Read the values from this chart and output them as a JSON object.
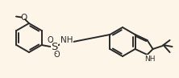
{
  "background_color": "#fdf6e8",
  "bond_color": "#2a2a2a",
  "text_color": "#2a2a2a",
  "line_width": 1.4,
  "font_size": 7.0,
  "figsize": [
    2.22,
    0.97
  ],
  "dpi": 100,
  "xlim": [
    0,
    222
  ],
  "ylim": [
    0,
    97
  ]
}
